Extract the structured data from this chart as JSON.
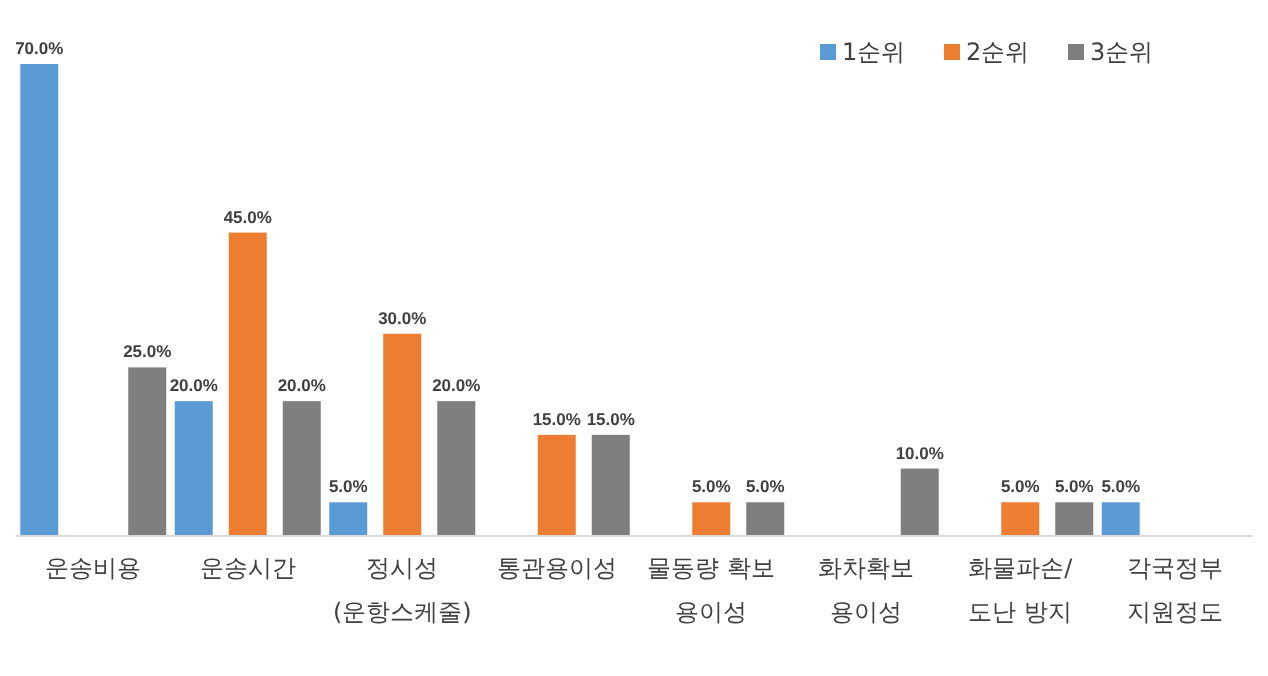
{
  "chart_data": {
    "type": "bar",
    "categories": [
      "운송비용",
      "운송시간",
      "정시성\n(운항스케줄)",
      "통관용이성",
      "물동량 확보\n용이성",
      "화차확보\n용이성",
      "화물파손/\n도난 방지",
      "각국정부\n지원정도"
    ],
    "series": [
      {
        "name": "1순위",
        "color": "#5b9bd5",
        "values": [
          70,
          20,
          5,
          null,
          null,
          null,
          null,
          5
        ],
        "value_labels": [
          "70.0%",
          "20.0%",
          "5.0%",
          null,
          null,
          null,
          null,
          "5.0%"
        ]
      },
      {
        "name": "2순위",
        "color": "#ed7d31",
        "values": [
          null,
          45,
          30,
          15,
          5,
          null,
          5,
          null
        ],
        "value_labels": [
          null,
          "45.0%",
          "30.0%",
          "15.0%",
          "5.0%",
          null,
          "5.0%",
          null
        ]
      },
      {
        "name": "3순위",
        "color": "#7f7f7f",
        "values": [
          25,
          20,
          20,
          15,
          5,
          10,
          5,
          null
        ],
        "value_labels": [
          "25.0%",
          "20.0%",
          "20.0%",
          "15.0%",
          "5.0%",
          "10.0%",
          "5.0%",
          null
        ]
      }
    ],
    "legend": "top right"
  }
}
